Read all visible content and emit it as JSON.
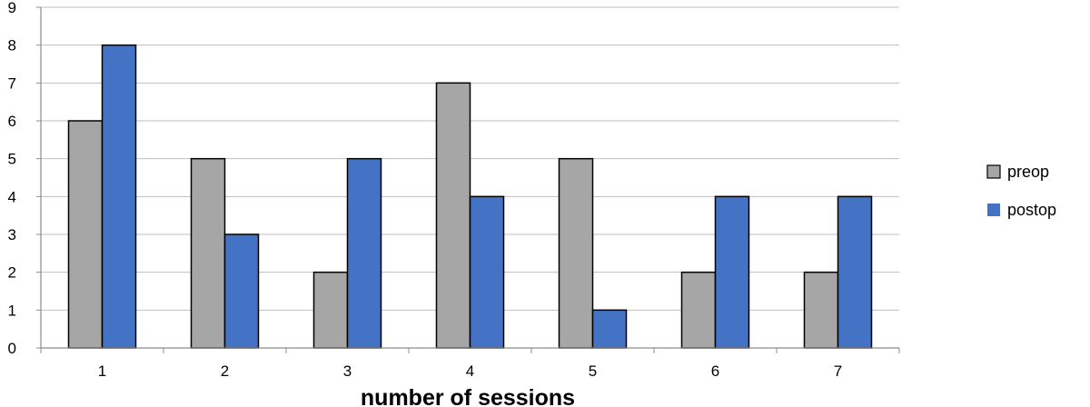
{
  "chart_data": {
    "type": "bar",
    "categories": [
      "1",
      "2",
      "3",
      "4",
      "5",
      "6",
      "7"
    ],
    "series": [
      {
        "name": "preop",
        "values": [
          6,
          5,
          2,
          7,
          5,
          2,
          2
        ],
        "color": "#a6a6a6"
      },
      {
        "name": "postop",
        "values": [
          8,
          3,
          5,
          4,
          1,
          4,
          4
        ],
        "color": "#4472c4"
      }
    ],
    "title": "",
    "xlabel": "number of sessions",
    "ylabel": "",
    "ylim": [
      0,
      9
    ],
    "yticks": [
      "0",
      "1",
      "2",
      "3",
      "4",
      "5",
      "6",
      "7",
      "8",
      "9"
    ],
    "grid": true,
    "legend": "right"
  }
}
